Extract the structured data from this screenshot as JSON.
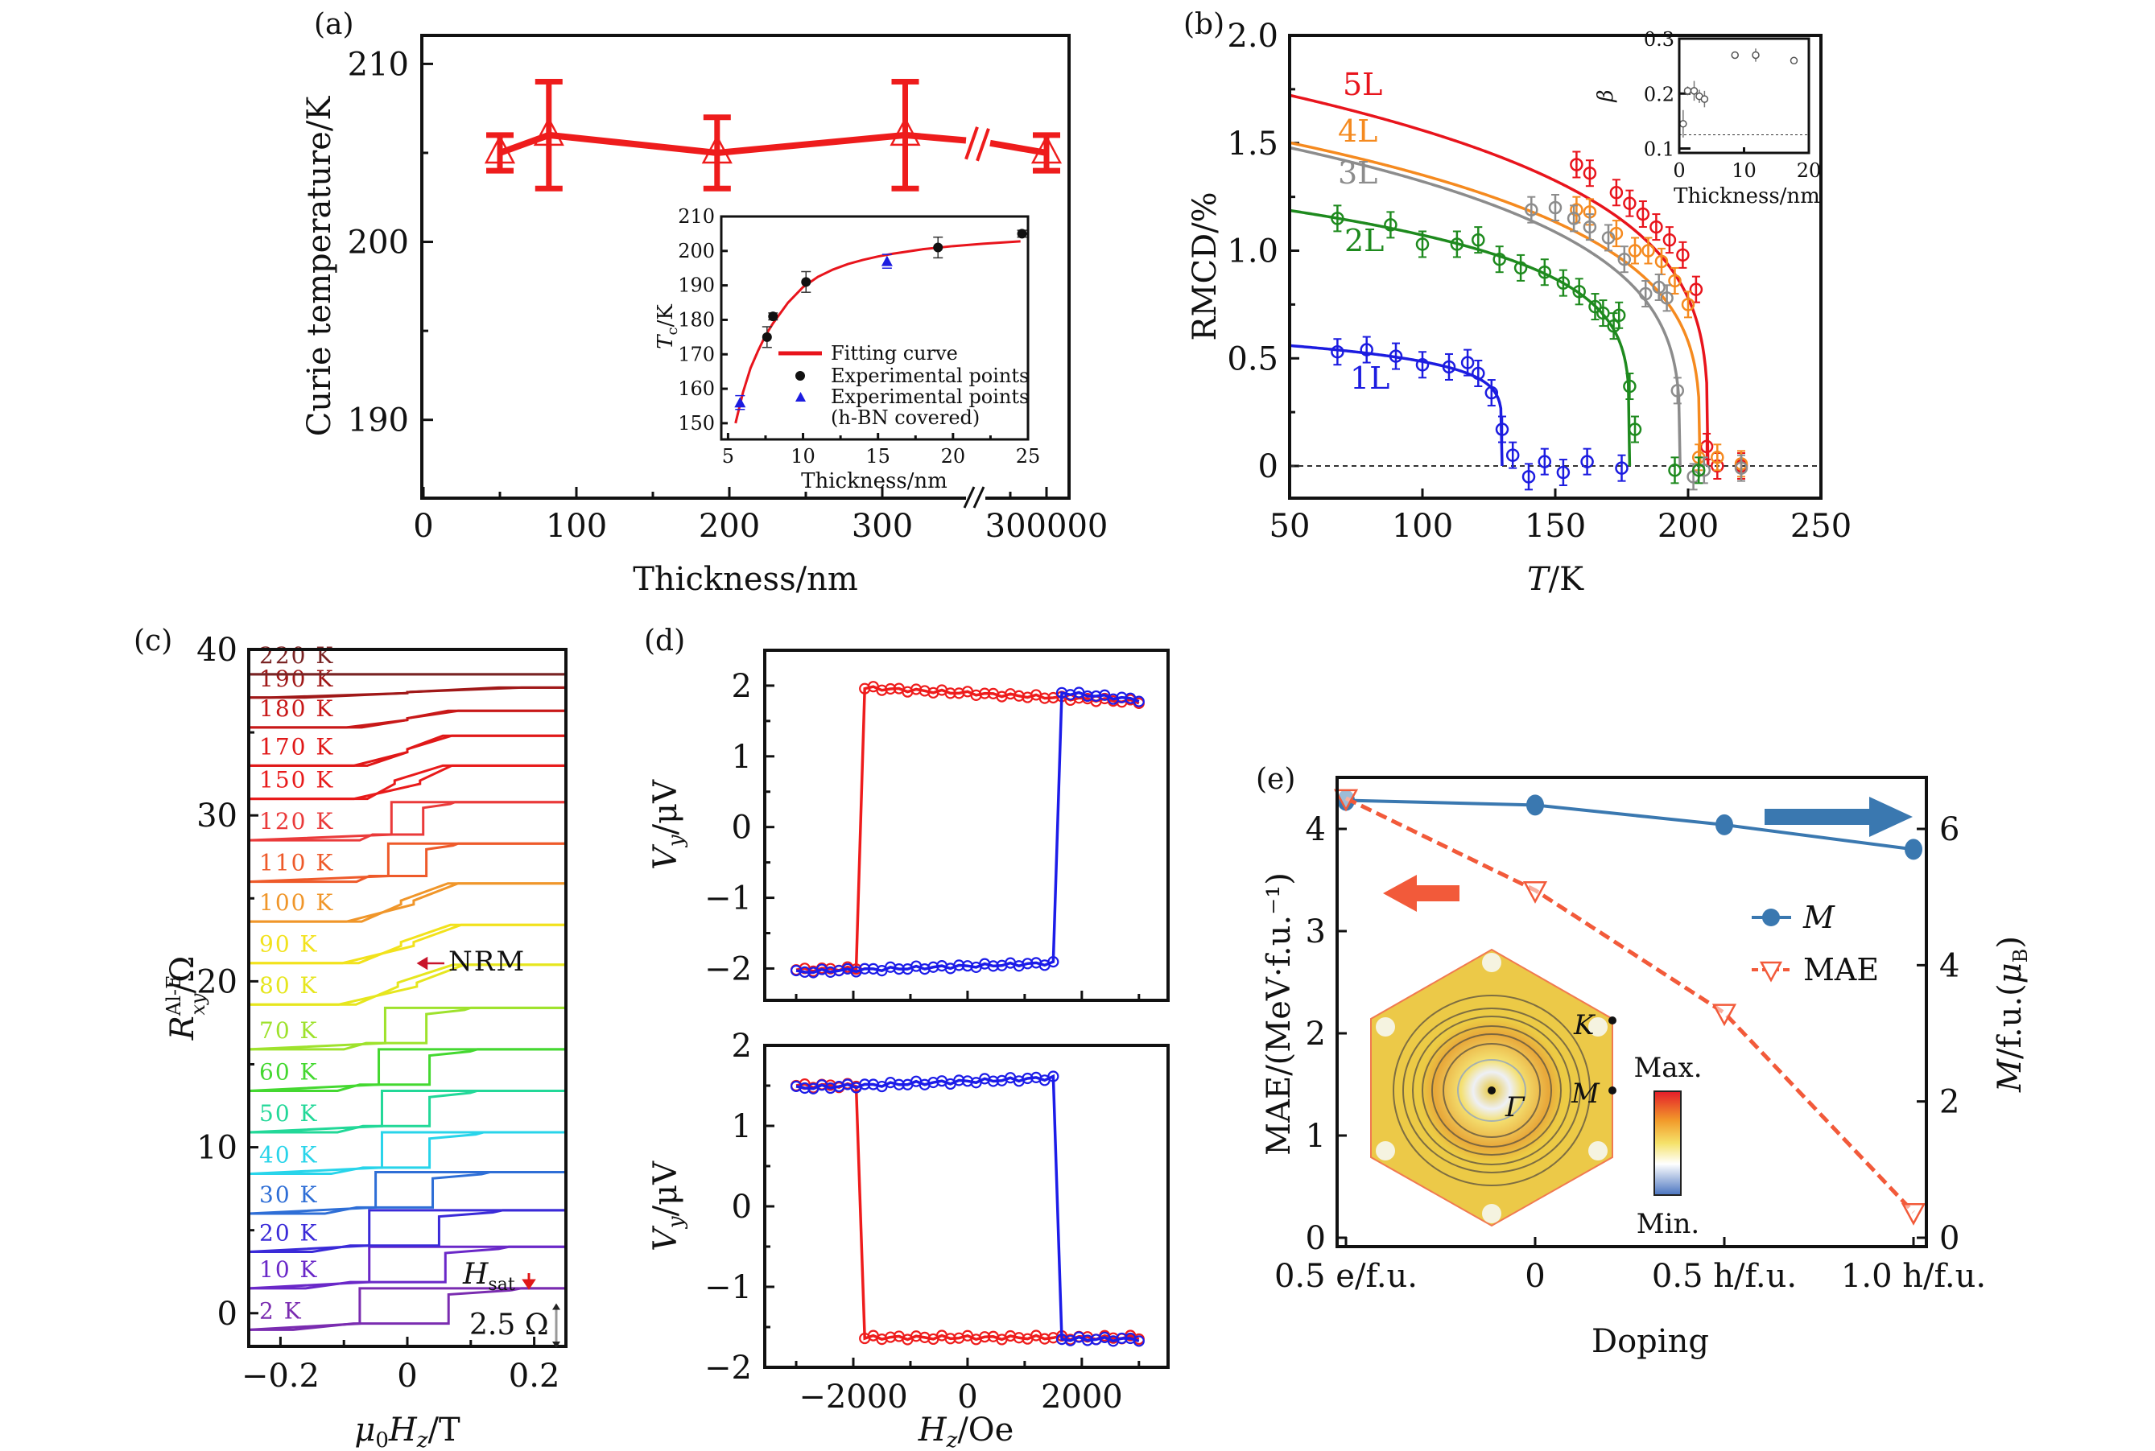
{
  "figure": {
    "panels": [
      "(a)",
      "(b)",
      "(c)",
      "(d)",
      "(e)"
    ]
  },
  "chart_data": [
    {
      "id": "a",
      "type": "scatter",
      "panel_label": "(a)",
      "xlabel": "Thickness/nm",
      "ylabel": "Curie temperature/K",
      "xlim": [
        0,
        340
      ],
      "ylim": [
        185.6,
        211.6
      ],
      "x_broken_axis": true,
      "xticks": [
        0,
        100,
        200,
        300,
        "300000"
      ],
      "yticks": [
        190,
        200,
        210
      ],
      "color": "#ee1c1c",
      "marker": "open-triangle",
      "series": [
        {
          "name": "Curie temperature",
          "x": [
            50,
            82,
            192,
            315,
            "300000"
          ],
          "y": [
            205,
            206,
            205,
            206,
            205
          ],
          "err": [
            1,
            3,
            2,
            3,
            1
          ]
        }
      ],
      "inset": {
        "type": "scatter",
        "xlabel": "Thickness/nm",
        "ylabel": "Tc/K",
        "xlim": [
          4.55,
          25
        ],
        "ylim": [
          145.3,
          210
        ],
        "xticks": [
          5,
          10,
          15,
          20,
          25
        ],
        "yticks": [
          150,
          160,
          170,
          180,
          190,
          200,
          210
        ],
        "legend": [
          "Fitting curve",
          "Experimental points",
          "Experimental points",
          "(h-BN covered)"
        ],
        "legend_position": "bottom-right",
        "fitting_curve": {
          "x": [
            5.5,
            6,
            6.5,
            7,
            7.5,
            8,
            9,
            10,
            11,
            12,
            13,
            14,
            15,
            16,
            18,
            20,
            22,
            24.5
          ],
          "y": [
            150,
            159,
            166,
            171,
            175.5,
            179,
            185,
            189.5,
            192.5,
            194.6,
            196.2,
            197.4,
            198.4,
            199.2,
            200.5,
            201.4,
            202.1,
            202.8
          ]
        },
        "experimental": {
          "x": [
            7.6,
            8.0,
            10.2,
            19.0,
            24.6
          ],
          "y": [
            175,
            181,
            191,
            201,
            205
          ],
          "err": [
            3,
            1,
            3,
            3,
            1
          ]
        },
        "hbn_covered": {
          "x": [
            5.8,
            15.6
          ],
          "y": [
            156,
            197
          ],
          "err": [
            2,
            2
          ]
        }
      }
    },
    {
      "id": "b",
      "type": "scatter",
      "panel_label": "(b)",
      "xlabel": "T/K",
      "ylabel": "RMCD/%",
      "xlim": [
        50,
        250
      ],
      "ylim": [
        -0.15,
        2.0
      ],
      "xticks": [
        50,
        100,
        150,
        200,
        250
      ],
      "yticks": [
        "0",
        "0.5",
        "1.0",
        "1.5",
        "2.0"
      ],
      "series": [
        {
          "name": "5L",
          "color": "#e8141c",
          "M0": 1.85,
          "Tc": 207.5,
          "beta": 0.26,
          "x": [
            158,
            163,
            173,
            178,
            183,
            188,
            193,
            198,
            203,
            207,
            211,
            220
          ],
          "y": [
            1.4,
            1.36,
            1.27,
            1.22,
            1.17,
            1.11,
            1.05,
            0.98,
            0.82,
            0.09,
            0.0,
            0.0
          ]
        },
        {
          "name": "4L",
          "color": "#f58a1f",
          "M0": 1.62,
          "Tc": 204.5,
          "beta": 0.27,
          "x": [
            158,
            163,
            173,
            180,
            185,
            190,
            195,
            200,
            204,
            211,
            220
          ],
          "y": [
            1.19,
            1.18,
            1.08,
            1.0,
            1.0,
            0.95,
            0.86,
            0.75,
            0.04,
            0.04,
            0.01
          ]
        },
        {
          "name": "3L",
          "color": "#8c8c8c",
          "M0": 1.6,
          "Tc": 197,
          "beta": 0.27,
          "x": [
            141,
            150,
            157,
            163,
            170,
            176,
            184,
            189,
            192,
            196,
            202,
            206,
            220
          ],
          "y": [
            1.19,
            1.2,
            1.15,
            1.11,
            1.06,
            0.96,
            0.8,
            0.83,
            0.78,
            0.35,
            -0.05,
            -0.02,
            -0.01
          ]
        },
        {
          "name": "2L",
          "color": "#1e8a1e",
          "M0": 1.27,
          "Tc": 178,
          "beta": 0.205,
          "x": [
            68,
            88,
            100,
            113,
            121,
            129,
            137,
            146,
            153,
            159,
            165,
            168,
            172,
            174,
            178,
            180,
            195,
            204
          ],
          "y": [
            1.15,
            1.12,
            1.03,
            1.03,
            1.05,
            0.96,
            0.92,
            0.9,
            0.85,
            0.81,
            0.74,
            0.71,
            0.65,
            0.7,
            0.37,
            0.17,
            -0.02,
            -0.02
          ]
        },
        {
          "name": "1L",
          "color": "#1c1ce0",
          "M0": 0.6,
          "Tc": 130,
          "beta": 0.145,
          "x": [
            68,
            79,
            90,
            100,
            110,
            117,
            121,
            126,
            130,
            134,
            140,
            146,
            153,
            162,
            175
          ],
          "y": [
            0.53,
            0.54,
            0.51,
            0.47,
            0.46,
            0.48,
            0.43,
            0.34,
            0.17,
            0.05,
            -0.05,
            0.02,
            -0.03,
            0.02,
            -0.01
          ]
        }
      ],
      "inset": {
        "type": "scatter",
        "xlabel": "Thickness/nm",
        "ylabel": "β",
        "xlim": [
          0,
          20
        ],
        "ylim": [
          0.092,
          0.3
        ],
        "xticks": [
          0,
          10,
          20
        ],
        "yticks": [
          "0.1",
          "0.2",
          "0.3"
        ],
        "reference_line": 0.125,
        "x": [
          0.6,
          1.3,
          2.3,
          3.1,
          3.9,
          8.6,
          11.8,
          17.7
        ],
        "y": [
          0.145,
          0.205,
          0.205,
          0.195,
          0.19,
          0.27,
          0.27,
          0.26
        ],
        "err": [
          0.025,
          0.008,
          0.018,
          0.012,
          0.015,
          0.006,
          0.012,
          0.006
        ]
      }
    },
    {
      "id": "c",
      "type": "line",
      "panel_label": "(c)",
      "xlabel": "μ0Hz/T",
      "ylabel": "R xy^{Al-E}/Ω",
      "ylabel_main": "R",
      "ylabel_sup": "Al-E",
      "ylabel_sub": "xy",
      "ylabel_unit": "/Ω",
      "xlim": [
        -0.25,
        0.25
      ],
      "ylim": [
        -2,
        40
      ],
      "xticks": [
        "−0.2",
        "0",
        "0.2"
      ],
      "xtick_values": [
        -0.2,
        0,
        0.2
      ],
      "yticks": [
        0,
        10,
        20,
        30,
        40
      ],
      "annotations": {
        "nrm": "NRM",
        "hsat": "H",
        "hsat_sub": "sat",
        "scale_bar": "2.5 Ω"
      },
      "scale_bar_ohm": 2.5,
      "curves": [
        {
          "label": "2 K",
          "color": "#7a2cb0",
          "base": -1.0,
          "step": 2.5,
          "hc": [
            0.065,
            0.045
          ],
          "hc_neg": [
            -0.055,
            -0.075
          ],
          "sat": 0.18
        },
        {
          "label": "10 K",
          "color": "#6a28c8",
          "base": 1.5,
          "step": 2.5,
          "hc": [
            0.06,
            0.06
          ],
          "hc_neg": [
            -0.06,
            -0.06
          ],
          "sat": 0.16
        },
        {
          "label": "20 K",
          "color": "#3a2ad8",
          "base": 3.7,
          "step": 2.5,
          "hc": [
            0.05,
            0.05
          ],
          "hc_neg": [
            -0.06,
            -0.06
          ],
          "sat": 0.15
        },
        {
          "label": "30 K",
          "color": "#2e6ed6",
          "base": 6.0,
          "step": 2.5,
          "hc": [
            0.04,
            0.04
          ],
          "hc_neg": [
            -0.05,
            -0.05
          ],
          "sat": 0.13
        },
        {
          "label": "40 K",
          "color": "#28d4ea",
          "base": 8.4,
          "step": 2.5,
          "hc": [
            0.035,
            0.035
          ],
          "hc_neg": [
            -0.04,
            -0.04
          ],
          "sat": 0.12
        },
        {
          "label": "50 K",
          "color": "#22d898",
          "base": 10.9,
          "step": 2.5,
          "hc": [
            0.035,
            0.035
          ],
          "hc_neg": [
            -0.04,
            -0.04
          ],
          "sat": 0.11
        },
        {
          "label": "60 K",
          "color": "#44d830",
          "base": 13.4,
          "step": 2.5,
          "hc": [
            0.035,
            0.035
          ],
          "hc_neg": [
            -0.045,
            -0.045
          ],
          "sat": 0.11
        },
        {
          "label": "70 K",
          "color": "#9ee22c",
          "base": 15.9,
          "step": 2.5,
          "hc": [
            0.03,
            0.03
          ],
          "hc_neg": [
            -0.035,
            -0.035
          ],
          "sat": 0.1
        },
        {
          "label": "80 K",
          "color": "#e6e61e",
          "base": 18.6,
          "step": 2.4,
          "hc": [
            0.015,
            0.015
          ],
          "hc_neg": [
            -0.015,
            -0.015
          ],
          "sat": 0.09
        },
        {
          "label": "90 K",
          "color": "#f2e21c",
          "base": 21.1,
          "step": 2.3,
          "hc": [
            0.01,
            0.01
          ],
          "hc_neg": [
            -0.01,
            -0.01
          ],
          "sat": 0.085
        },
        {
          "label": "100 K",
          "color": "#f0962a",
          "base": 23.6,
          "step": 2.3,
          "hc": [
            0.01,
            0.01
          ],
          "hc_neg": [
            -0.01,
            -0.01
          ],
          "sat": 0.08
        },
        {
          "label": "110 K",
          "color": "#ee5a2a",
          "base": 26.0,
          "step": 2.3,
          "hc": [
            0.03,
            0.03
          ],
          "hc_neg": [
            -0.03,
            -0.03
          ],
          "sat": 0.08
        },
        {
          "label": "120 K",
          "color": "#ea3a3a",
          "base": 28.5,
          "step": 2.3,
          "hc": [
            0.025,
            0.025
          ],
          "hc_neg": [
            -0.025,
            -0.025
          ],
          "sat": 0.075
        },
        {
          "label": "150 K",
          "color": "#e81a1a",
          "base": 31.0,
          "step": 2.0,
          "hc": [
            0.02,
            0.02
          ],
          "hc_neg": [
            -0.02,
            -0.02
          ],
          "sat": 0.07
        },
        {
          "label": "170 K",
          "color": "#e01818",
          "base": 33.0,
          "step": 1.8,
          "hc": [
            0.0,
            0.0
          ],
          "hc_neg": [
            0.0,
            0.0
          ],
          "sat": 0.07
        },
        {
          "label": "180 K",
          "color": "#c81818",
          "base": 35.3,
          "step": 1.0,
          "hc": [
            0.0,
            0.0
          ],
          "hc_neg": [
            0.0,
            0.0
          ],
          "sat": 0.08
        },
        {
          "label": "190 K",
          "color": "#a01818",
          "base": 37.1,
          "step": 0.6,
          "hc": [
            0.0,
            0.0
          ],
          "hc_neg": [
            0.0,
            0.0
          ],
          "sat": 0.18
        },
        {
          "label": "220 K",
          "color": "#7a2424",
          "base": 38.5,
          "step": 0.0,
          "hc": [
            0.0,
            0.0
          ],
          "hc_neg": [
            0.0,
            0.0
          ],
          "sat": 0.0
        }
      ]
    },
    {
      "id": "d-top",
      "type": "scatter",
      "panel_label": "(d)",
      "xlabel": "",
      "ylabel": "Vy/μV",
      "ylabel_main": "V",
      "ylabel_sub": "y",
      "ylabel_unit": "/μV",
      "xlim": [
        -3550,
        3510
      ],
      "ylim": [
        -2.45,
        2.5
      ],
      "xticks_minor": [
        -3000,
        -2000,
        -1000,
        0,
        1000,
        2000,
        3000
      ],
      "yticks": [
        "−2",
        "−1",
        "0",
        "1",
        "2"
      ],
      "ytick_values": [
        -2,
        -1,
        0,
        1,
        2
      ],
      "series": [
        {
          "name": "sweep-down",
          "color": "#ee1c1c",
          "x_start": -3000,
          "x_end": 3000,
          "switch": -1850,
          "low": -2.02,
          "high": 1.97,
          "high_end": 1.77,
          "low_end": -2.0
        },
        {
          "name": "sweep-up",
          "color": "#1c1ce8",
          "x_start": -3000,
          "x_end": 3000,
          "switch": 1650,
          "low": -2.05,
          "low_end": -1.92,
          "high": 1.9,
          "high_end": 1.8
        }
      ]
    },
    {
      "id": "d-bottom",
      "type": "scatter",
      "xlabel": "Hz/Oe",
      "xlabel_main": "H",
      "xlabel_sub": "z",
      "xlabel_unit": "/Oe",
      "ylabel": "Vy/μV",
      "ylabel_main": "V",
      "ylabel_sub": "y",
      "ylabel_unit": "/μV",
      "xlim": [
        -3550,
        3510
      ],
      "ylim": [
        -2,
        2
      ],
      "xticks": [
        "−2000",
        "0",
        "2000"
      ],
      "xtick_values": [
        -2000,
        0,
        2000
      ],
      "xticks_minor": [
        -3000,
        -2000,
        -1000,
        0,
        1000,
        2000,
        3000
      ],
      "yticks": [
        "−2",
        "−1",
        "0",
        "1",
        "2"
      ],
      "ytick_values": [
        -2,
        -1,
        0,
        1,
        2
      ],
      "series": [
        {
          "name": "sweep-down",
          "color": "#ee1c1c",
          "x_start": -3000,
          "x_end": 3000,
          "switch": -1850,
          "high": 1.5,
          "low": -1.63,
          "low_end": -1.63
        },
        {
          "name": "sweep-up",
          "color": "#1c1ce8",
          "x_start": -3000,
          "x_end": 3000,
          "switch": 1650,
          "high_start": 1.47,
          "high": 1.6,
          "low": -1.65
        }
      ]
    },
    {
      "id": "e",
      "type": "line",
      "panel_label": "(e)",
      "xlabel": "Doping",
      "ylabel": "MAE/(MeV·f.u.⁻¹)",
      "ylabel_right": "M/f.u.(μB)",
      "categories": [
        "0.5 e/f.u.",
        "0",
        "0.5 h/f.u.",
        "1.0 h/f.u."
      ],
      "ylim": [
        0,
        4.5
      ],
      "ylim_right": [
        0,
        6.75
      ],
      "yticks": [
        0,
        1,
        2,
        3,
        4
      ],
      "yticks_right": [
        0,
        2,
        4,
        6
      ],
      "series": [
        {
          "name": "M",
          "axis": "right",
          "color": "#3a78b0",
          "marker": "filled-circle",
          "style": "solid",
          "values": [
            6.42,
            6.35,
            6.06,
            5.7
          ]
        },
        {
          "name": "MAE",
          "axis": "left",
          "color": "#f25a3a",
          "marker": "open-down-triangle",
          "style": "dashed",
          "values": [
            4.3,
            3.4,
            2.2,
            0.25
          ]
        }
      ],
      "legend": [
        "M",
        "MAE"
      ],
      "legend_position": "right-middle",
      "inset": {
        "type": "brillouin-zone-map",
        "points": [
          "K",
          "M",
          "Γ"
        ],
        "colorbar_max": "Max.",
        "colorbar_min": "Min."
      }
    }
  ]
}
